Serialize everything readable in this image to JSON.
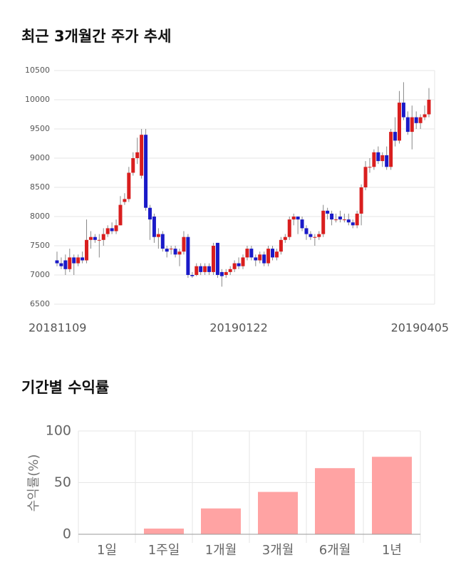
{
  "chart_data": [
    {
      "type": "candlestick",
      "title": "최근 3개월간 주가 추세",
      "categories": [
        "20181109",
        null,
        null,
        null,
        null,
        null,
        null,
        null,
        null,
        null,
        null,
        null,
        null,
        null,
        null,
        null,
        null,
        null,
        null,
        null,
        null,
        null,
        null,
        null,
        null,
        null,
        null,
        null,
        null,
        null,
        null,
        null,
        null,
        null,
        null,
        null,
        null,
        null,
        null,
        null,
        null,
        null,
        null,
        "20190122",
        null,
        null,
        null,
        null,
        null,
        null,
        null,
        null,
        null,
        null,
        null,
        null,
        null,
        null,
        null,
        null,
        null,
        null,
        null,
        null,
        null,
        null,
        null,
        null,
        null,
        null,
        null,
        null,
        null,
        null,
        null,
        null,
        null,
        null,
        null,
        null,
        null,
        null,
        null,
        null,
        null,
        null,
        null,
        null,
        "20190405"
      ],
      "ohlc": [
        [
          7250,
          7400,
          7150,
          7200
        ],
        [
          7200,
          7300,
          7100,
          7150
        ],
        [
          7250,
          7350,
          7000,
          7100
        ],
        [
          7100,
          7450,
          7050,
          7300
        ],
        [
          7300,
          7350,
          7000,
          7200
        ],
        [
          7200,
          7350,
          7150,
          7300
        ],
        [
          7300,
          7400,
          7200,
          7250
        ],
        [
          7250,
          7950,
          7200,
          7600
        ],
        [
          7600,
          7750,
          7450,
          7650
        ],
        [
          7650,
          7700,
          7550,
          7600
        ],
        [
          7600,
          7700,
          7300,
          7600
        ],
        [
          7600,
          7800,
          7500,
          7700
        ],
        [
          7700,
          7850,
          7650,
          7800
        ],
        [
          7800,
          7900,
          7700,
          7750
        ],
        [
          7750,
          7950,
          7700,
          7850
        ],
        [
          7850,
          8350,
          7850,
          8200
        ],
        [
          8250,
          8400,
          8200,
          8300
        ],
        [
          8300,
          8850,
          8250,
          8750
        ],
        [
          8750,
          9100,
          8700,
          9000
        ],
        [
          9000,
          9350,
          8900,
          9100
        ],
        [
          8700,
          9500,
          8650,
          9400
        ],
        [
          9400,
          9500,
          8100,
          8150
        ],
        [
          8150,
          8200,
          7600,
          7950
        ],
        [
          8000,
          8050,
          7550,
          7650
        ],
        [
          7650,
          7800,
          7450,
          7700
        ],
        [
          7700,
          7750,
          7400,
          7450
        ],
        [
          7450,
          7500,
          7300,
          7400
        ],
        [
          7450,
          7500,
          7350,
          7450
        ],
        [
          7450,
          7500,
          7300,
          7350
        ],
        [
          7350,
          7450,
          7150,
          7400
        ],
        [
          7400,
          7750,
          7350,
          7650
        ],
        [
          7650,
          7700,
          6950,
          7000
        ],
        [
          7000,
          7050,
          6950,
          6980
        ],
        [
          7000,
          7200,
          6980,
          7150
        ],
        [
          7150,
          7200,
          7000,
          7050
        ],
        [
          7050,
          7200,
          7000,
          7150
        ],
        [
          7150,
          7200,
          7000,
          7050
        ],
        [
          7050,
          7550,
          7000,
          7500
        ],
        [
          7550,
          7550,
          6950,
          7000
        ],
        [
          7050,
          7100,
          6800,
          6980
        ],
        [
          7000,
          7100,
          6950,
          7050
        ],
        [
          7050,
          7150,
          7000,
          7100
        ],
        [
          7100,
          7250,
          7050,
          7200
        ],
        [
          7200,
          7300,
          7100,
          7150
        ],
        [
          7150,
          7350,
          7100,
          7300
        ],
        [
          7300,
          7500,
          7250,
          7450
        ],
        [
          7450,
          7500,
          7250,
          7300
        ],
        [
          7300,
          7350,
          7150,
          7250
        ],
        [
          7250,
          7400,
          7200,
          7350
        ],
        [
          7350,
          7400,
          7150,
          7200
        ],
        [
          7200,
          7500,
          7150,
          7450
        ],
        [
          7450,
          7500,
          7250,
          7300
        ],
        [
          7300,
          7450,
          7250,
          7400
        ],
        [
          7400,
          7650,
          7350,
          7600
        ],
        [
          7600,
          7700,
          7550,
          7650
        ],
        [
          7650,
          8000,
          7600,
          7950
        ],
        [
          7950,
          8050,
          7850,
          8000
        ],
        [
          8000,
          8000,
          7700,
          7950
        ],
        [
          7950,
          8000,
          7750,
          7800
        ],
        [
          7800,
          7850,
          7600,
          7700
        ],
        [
          7700,
          7750,
          7600,
          7650
        ],
        [
          7650,
          7700,
          7500,
          7650
        ],
        [
          7650,
          7750,
          7600,
          7700
        ],
        [
          7700,
          8200,
          7650,
          8100
        ],
        [
          8100,
          8150,
          7950,
          8050
        ],
        [
          8050,
          8100,
          7850,
          7950
        ],
        [
          7950,
          8050,
          7900,
          7950
        ],
        [
          8000,
          8100,
          7900,
          7950
        ],
        [
          7950,
          8050,
          7900,
          7950
        ],
        [
          7950,
          8050,
          7850,
          7900
        ],
        [
          7900,
          7950,
          7800,
          7850
        ],
        [
          7850,
          8100,
          7800,
          8050
        ],
        [
          8050,
          8550,
          7850,
          8500
        ],
        [
          8500,
          8950,
          8450,
          8850
        ],
        [
          8850,
          9000,
          8750,
          8850
        ],
        [
          8850,
          9150,
          8800,
          9100
        ],
        [
          9100,
          9200,
          8900,
          8950
        ],
        [
          8950,
          9100,
          8850,
          9050
        ],
        [
          9050,
          9200,
          8800,
          8850
        ],
        [
          8850,
          9500,
          8800,
          9450
        ],
        [
          9450,
          9700,
          9200,
          9300
        ],
        [
          9300,
          10150,
          9250,
          9950
        ],
        [
          9950,
          10300,
          9650,
          9700
        ],
        [
          9700,
          9800,
          9400,
          9450
        ],
        [
          9450,
          9900,
          9150,
          9700
        ],
        [
          9700,
          9800,
          9500,
          9600
        ],
        [
          9600,
          9750,
          9500,
          9700
        ],
        [
          9700,
          9900,
          9650,
          9750
        ],
        [
          9750,
          10200,
          9700,
          10000
        ]
      ],
      "up_color": "#d91e1e",
      "down_color": "#1a1ac8",
      "ylim": [
        6500,
        10500
      ],
      "yticks": [
        6500,
        7000,
        7500,
        8000,
        8500,
        9000,
        9500,
        10000,
        10500
      ],
      "grid": true
    },
    {
      "type": "bar",
      "title": "기간별 수익률",
      "ylabel": "수익률(%)",
      "categories": [
        "1일",
        "1주일",
        "1개월",
        "3개월",
        "6개월",
        "1년"
      ],
      "values": [
        0,
        5.5,
        25,
        41,
        64,
        75
      ],
      "color": "#ffa3a3",
      "ylim": [
        0,
        100
      ],
      "yticks": [
        0,
        50,
        100
      ],
      "grid": true
    }
  ]
}
